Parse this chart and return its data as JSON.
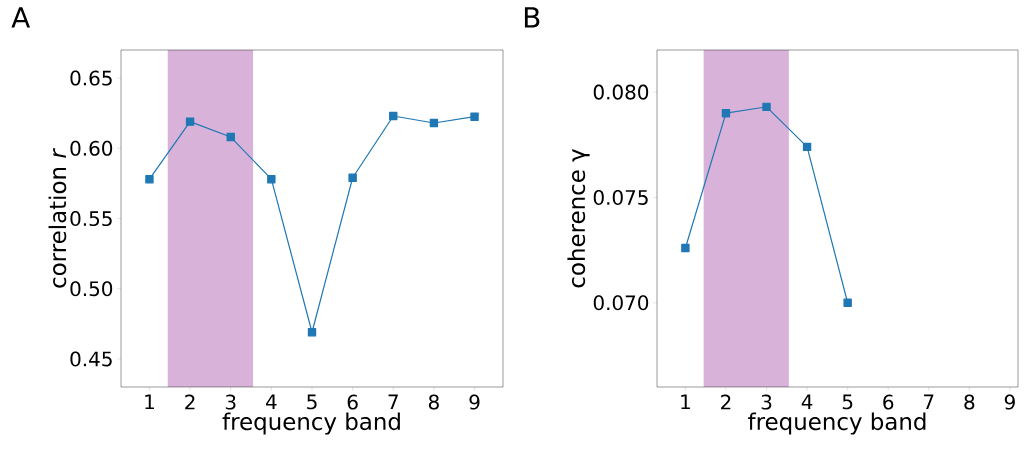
{
  "chart_data": [
    {
      "type": "line",
      "title": "A",
      "xlabel": "frequency band",
      "ylabel": "correlation *r*",
      "x": [
        1,
        2,
        3,
        4,
        5,
        6,
        7,
        8,
        9
      ],
      "series": [
        {
          "color": "#1f77b4",
          "values": [
            0.578,
            0.619,
            0.608,
            0.578,
            0.469,
            0.579,
            0.623,
            0.618,
            0.6225
          ]
        }
      ],
      "marker": "square",
      "line_style": "solid",
      "xlim": [
        0.3,
        9.7
      ],
      "xticks": [
        1,
        2,
        3,
        4,
        5,
        6,
        7,
        8,
        9
      ],
      "ylim": [
        0.43,
        0.67
      ],
      "yticks": [
        {
          "value": 0.45,
          "label": "0.45"
        },
        {
          "value": 0.5,
          "label": "0.50"
        },
        {
          "value": 0.55,
          "label": "0.55"
        },
        {
          "value": 0.6,
          "label": "0.60"
        },
        {
          "value": 0.65,
          "label": "0.65"
        }
      ],
      "bands": [
        {
          "axis": "x",
          "from": 1.45,
          "to": 3.55,
          "color": "#d8b2d8"
        }
      ]
    },
    {
      "type": "line",
      "title": "B",
      "xlabel": "frequency band",
      "ylabel": "coherence γ",
      "x": [
        1,
        2,
        3,
        4,
        5
      ],
      "series": [
        {
          "color": "#1f77b4",
          "values": [
            0.0726,
            0.079,
            0.0793,
            0.0774,
            0.07
          ]
        }
      ],
      "marker": "square",
      "line_style": "solid",
      "xlim": [
        0.3,
        9.2
      ],
      "xticks": [
        1,
        2,
        3,
        4,
        5,
        6,
        7,
        8,
        9
      ],
      "ylim": [
        0.066,
        0.082
      ],
      "yticks": [
        {
          "value": 0.07,
          "label": "0.070"
        },
        {
          "value": 0.075,
          "label": "0.075"
        },
        {
          "value": 0.08,
          "label": "0.080"
        }
      ],
      "bands": [
        {
          "axis": "x",
          "from": 1.45,
          "to": 3.55,
          "color": "#d8b2d8"
        }
      ]
    }
  ]
}
